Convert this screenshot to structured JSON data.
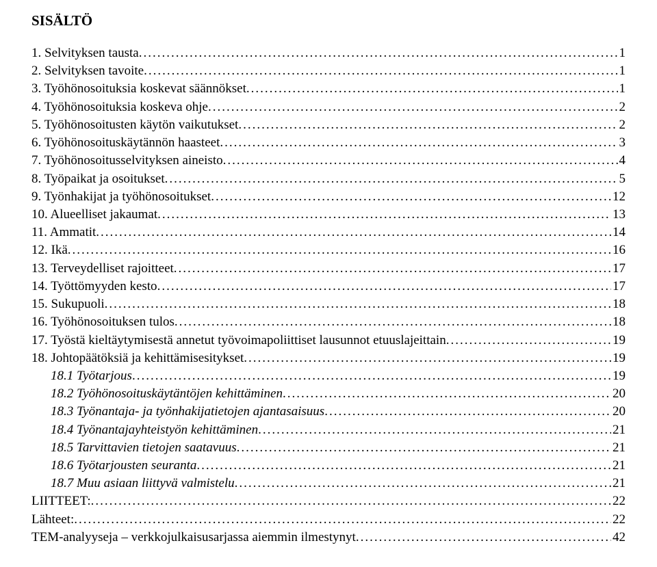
{
  "title": "SISÄLTÖ",
  "entries": [
    {
      "label": "1. Selvityksen tausta",
      "page": "1",
      "indent": 0,
      "italic": false
    },
    {
      "label": "2. Selvityksen tavoite",
      "page": "1",
      "indent": 0,
      "italic": false
    },
    {
      "label": "3. Työhönosoituksia koskevat säännökset",
      "page": "1",
      "indent": 0,
      "italic": false
    },
    {
      "label": "4. Työhönosoituksia koskeva ohje",
      "page": "2",
      "indent": 0,
      "italic": false
    },
    {
      "label": "5. Työhönosoitusten käytön vaikutukset",
      "page": "2",
      "indent": 0,
      "italic": false
    },
    {
      "label": "6. Työhönosoituskäytännön haasteet",
      "page": "3",
      "indent": 0,
      "italic": false
    },
    {
      "label": "7. Työhönosoitusselvityksen aineisto",
      "page": "4",
      "indent": 0,
      "italic": false
    },
    {
      "label": "8. Työpaikat ja osoitukset",
      "page": "5",
      "indent": 0,
      "italic": false
    },
    {
      "label": "9. Työnhakijat ja työhönosoitukset",
      "page": "12",
      "indent": 0,
      "italic": false
    },
    {
      "label": "10. Alueelliset jakaumat",
      "page": "13",
      "indent": 0,
      "italic": false
    },
    {
      "label": "11. Ammatit",
      "page": "14",
      "indent": 0,
      "italic": false
    },
    {
      "label": "12. Ikä",
      "page": "16",
      "indent": 0,
      "italic": false
    },
    {
      "label": "13. Terveydelliset rajoitteet",
      "page": "17",
      "indent": 0,
      "italic": false
    },
    {
      "label": "14. Työttömyyden kesto",
      "page": "17",
      "indent": 0,
      "italic": false
    },
    {
      "label": "15. Sukupuoli",
      "page": "18",
      "indent": 0,
      "italic": false
    },
    {
      "label": "16. Työhönosoituksen tulos",
      "page": "18",
      "indent": 0,
      "italic": false
    },
    {
      "label": "17. Työstä kieltäytymisestä annetut työvoimapoliittiset lausunnot etuuslajeittain",
      "page": "19",
      "indent": 0,
      "italic": false
    },
    {
      "label": "18. Johtopäätöksiä ja kehittämisesitykset",
      "page": "19",
      "indent": 0,
      "italic": false
    },
    {
      "label": "18.1 Työtarjous",
      "page": "19",
      "indent": 1,
      "italic": true
    },
    {
      "label": "18.2 Työhönosoituskäytäntöjen kehittäminen",
      "page": "20",
      "indent": 1,
      "italic": true
    },
    {
      "label": "18.3 Työnantaja- ja työnhakijatietojen ajantasaisuus",
      "page": "20",
      "indent": 1,
      "italic": true
    },
    {
      "label": "18.4 Työnantajayhteistyön kehittäminen",
      "page": "21",
      "indent": 1,
      "italic": true
    },
    {
      "label": "18.5 Tarvittavien tietojen saatavuus",
      "page": "21",
      "indent": 1,
      "italic": true
    },
    {
      "label": "18.6 Työtarjousten seuranta",
      "page": "21",
      "indent": 1,
      "italic": true
    },
    {
      "label": "18.7 Muu asiaan liittyvä valmistelu",
      "page": "21",
      "indent": 1,
      "italic": true
    },
    {
      "label": "LIITTEET:",
      "page": "22",
      "indent": 0,
      "italic": false
    },
    {
      "label": "Lähteet:",
      "page": "22",
      "indent": 0,
      "italic": false
    },
    {
      "label": "TEM-analyyseja – verkkojulkaisusarjassa aiemmin ilmestynyt",
      "page": "42",
      "indent": 0,
      "italic": false
    }
  ]
}
